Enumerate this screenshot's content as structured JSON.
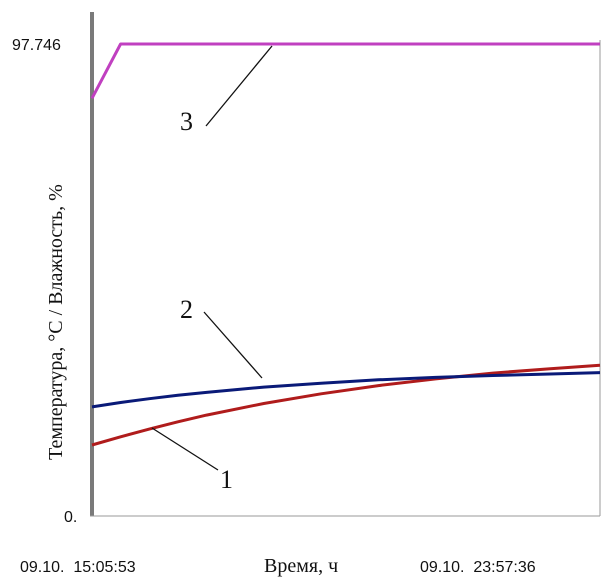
{
  "chart_data": {
    "type": "line",
    "xlabel": "Время, ч",
    "ylabel": "Температура, °С / Влажность, %",
    "x_tick_labels": [
      "09.10.  15:05:53",
      "09.10.  23:57:36"
    ],
    "x_range": [
      "09.10. 15:05:53",
      "09.10. 23:57:36"
    ],
    "y_tick_labels": [
      "97.746",
      "0."
    ],
    "ylim": [
      0,
      97.746
    ],
    "grid": false,
    "x_hours": [
      0,
      0.5,
      1,
      1.5,
      2,
      3,
      4,
      5,
      6,
      7,
      8,
      8.87
    ],
    "series": [
      {
        "name": "1",
        "color": "#b01c1c",
        "values": [
          14.7,
          16.4,
          18.0,
          19.5,
          20.9,
          23.3,
          25.3,
          27.0,
          28.4,
          29.6,
          30.5,
          31.2
        ]
      },
      {
        "name": "2",
        "color": "#0a1a78",
        "values": [
          22.6,
          23.5,
          24.3,
          25.0,
          25.6,
          26.7,
          27.5,
          28.2,
          28.7,
          29.1,
          29.4,
          29.7
        ]
      },
      {
        "name": "3",
        "color": "#c040c0",
        "values": [
          86.5,
          97.746,
          97.746,
          97.746,
          97.746,
          97.746,
          97.746,
          97.746,
          97.746,
          97.746,
          97.746,
          97.746
        ]
      }
    ],
    "callouts": [
      "1",
      "2",
      "3"
    ]
  }
}
